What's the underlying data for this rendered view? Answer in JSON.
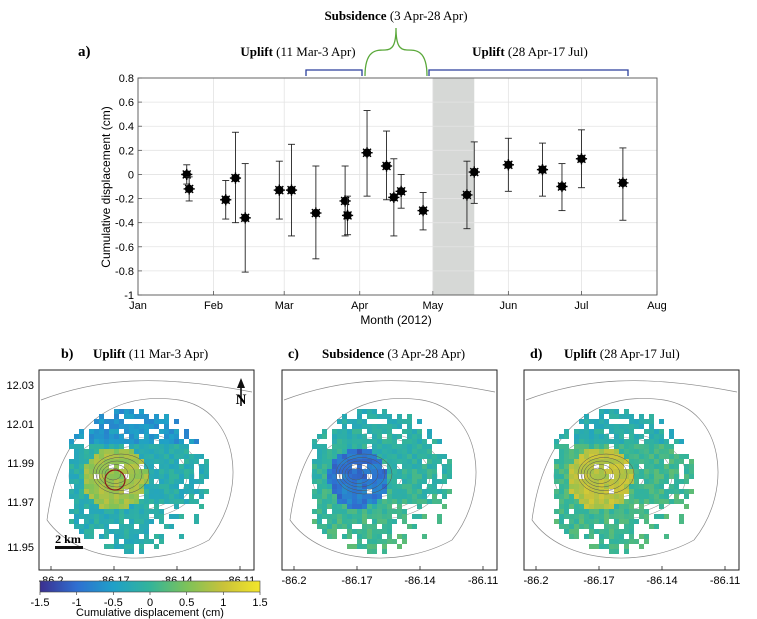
{
  "figure_label_a": "a)",
  "periods": {
    "uplift1": {
      "bold": "Uplift",
      "range": " (11 Mar-3 Apr)"
    },
    "subsidence": {
      "bold": "Subsidence",
      "range": " (3 Apr-28 Apr)"
    },
    "uplift2": {
      "bold": "Uplift",
      "range": " (28 Apr-17 Jul)"
    }
  },
  "chart_data": {
    "type": "scatter",
    "xlabel": "Month (2012)",
    "ylabel": "Cumulative displacement (cm)",
    "xlim": [
      "2012-01-01",
      "2012-08-01"
    ],
    "ylim": [
      -1,
      0.8
    ],
    "x_ticks": [
      {
        "date": "2012-01-01",
        "label": "Jan"
      },
      {
        "date": "2012-02-01",
        "label": "Feb"
      },
      {
        "date": "2012-03-01",
        "label": "Mar"
      },
      {
        "date": "2012-04-01",
        "label": "Apr"
      },
      {
        "date": "2012-05-01",
        "label": "May"
      },
      {
        "date": "2012-06-01",
        "label": "Jun"
      },
      {
        "date": "2012-07-01",
        "label": "Jul"
      },
      {
        "date": "2012-08-01",
        "label": "Aug"
      }
    ],
    "y_ticks": [
      "0.8",
      "0.6",
      "0.4",
      "0.2",
      "0",
      "-0.2",
      "-0.4",
      "-0.6",
      "-0.8",
      "-1"
    ],
    "y_tick_values": [
      0.8,
      0.6,
      0.4,
      0.2,
      0,
      -0.2,
      -0.4,
      -0.6,
      -0.8,
      -1
    ],
    "grid": true,
    "shaded_interval": [
      "2012-05-01",
      "2012-05-18"
    ],
    "points": [
      {
        "date": "2012-01-21",
        "y": 0.0,
        "low": -0.08,
        "high": 0.08
      },
      {
        "date": "2012-01-22",
        "y": -0.12,
        "low": -0.22,
        "high": -0.02
      },
      {
        "date": "2012-02-06",
        "y": -0.21,
        "low": -0.37,
        "high": -0.05
      },
      {
        "date": "2012-02-10",
        "y": -0.03,
        "low": -0.4,
        "high": 0.35
      },
      {
        "date": "2012-02-14",
        "y": -0.36,
        "low": -0.81,
        "high": 0.09
      },
      {
        "date": "2012-02-28",
        "y": -0.13,
        "low": -0.37,
        "high": 0.11
      },
      {
        "date": "2012-03-04",
        "y": -0.13,
        "low": -0.51,
        "high": 0.25
      },
      {
        "date": "2012-03-14",
        "y": -0.32,
        "low": -0.7,
        "high": 0.07
      },
      {
        "date": "2012-03-26",
        "y": -0.22,
        "low": -0.51,
        "high": 0.07
      },
      {
        "date": "2012-03-27",
        "y": -0.34,
        "low": -0.5,
        "high": -0.18
      },
      {
        "date": "2012-04-04",
        "y": 0.18,
        "low": -0.18,
        "high": 0.53
      },
      {
        "date": "2012-04-12",
        "y": 0.07,
        "low": -0.21,
        "high": 0.36
      },
      {
        "date": "2012-04-15",
        "y": -0.19,
        "low": -0.51,
        "high": 0.13
      },
      {
        "date": "2012-04-18",
        "y": -0.14,
        "low": -0.28,
        "high": 0.0
      },
      {
        "date": "2012-04-27",
        "y": -0.3,
        "low": -0.46,
        "high": -0.15
      },
      {
        "date": "2012-05-15",
        "y": -0.17,
        "low": -0.45,
        "high": 0.11
      },
      {
        "date": "2012-05-18",
        "y": 0.02,
        "low": -0.24,
        "high": 0.27
      },
      {
        "date": "2012-06-01",
        "y": 0.08,
        "low": -0.14,
        "high": 0.3
      },
      {
        "date": "2012-06-15",
        "y": 0.04,
        "low": -0.18,
        "high": 0.26
      },
      {
        "date": "2012-06-23",
        "y": -0.1,
        "low": -0.3,
        "high": 0.09
      },
      {
        "date": "2012-07-01",
        "y": 0.13,
        "low": -0.11,
        "high": 0.37
      },
      {
        "date": "2012-07-18",
        "y": -0.07,
        "low": -0.38,
        "high": 0.22
      }
    ]
  },
  "maps": [
    {
      "label": "b)",
      "title_bold": "Uplift",
      "title_range": " (11 Mar-3 Apr)",
      "variant": "uplift"
    },
    {
      "label": "c)",
      "title_bold": "Subsidence",
      "title_range": " (3 Apr-28 Apr)",
      "variant": "subsidence"
    },
    {
      "label": "d)",
      "title_bold": "Uplift",
      "title_range": " (28 Apr-17 Jul)",
      "variant": "uplift2"
    }
  ],
  "map_axes": {
    "lon_ticks": [
      "-86.2",
      "-86.17",
      "-86.14",
      "-86.11"
    ],
    "lat_ticks": [
      "12.03",
      "12.01",
      "11.99",
      "11.97",
      "11.95"
    ]
  },
  "scale_bar_label": "2 km",
  "north_label": "N",
  "colorbar": {
    "label": "Cumulative displacement (cm)",
    "ticks": [
      "-1.5",
      "-1",
      "-0.5",
      "0",
      "0.5",
      "1",
      "1.5"
    ],
    "range": [
      -1.5,
      1.5
    ],
    "colors": [
      "#3b2f8f",
      "#2f6fd1",
      "#1fa0c8",
      "#33b49a",
      "#7cc25a",
      "#c9c23a",
      "#f3e62a"
    ]
  }
}
